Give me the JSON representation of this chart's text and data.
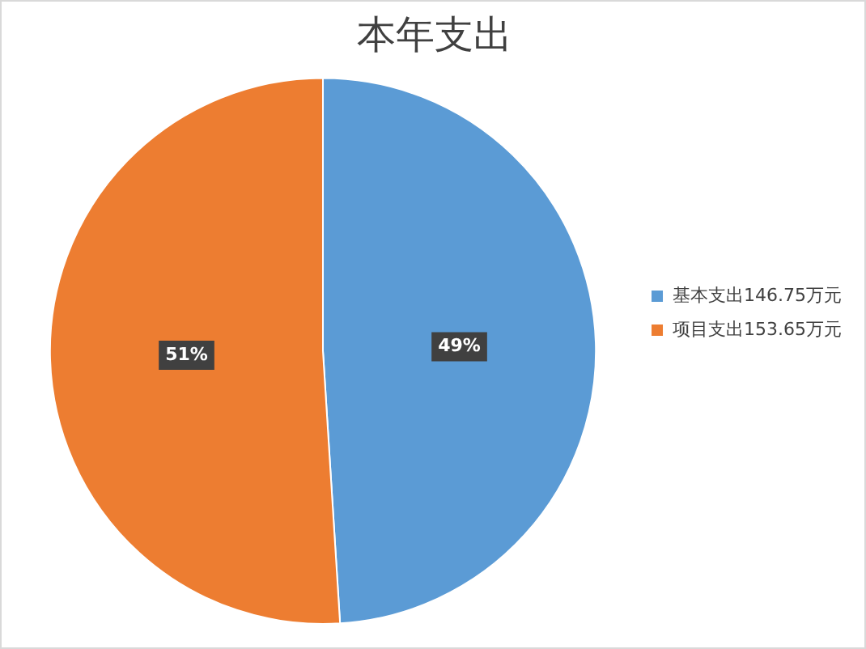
{
  "chart_data": {
    "type": "pie",
    "title": "本年支出",
    "categories": [
      "基本支出146.75万元",
      "项目支出153.65万元"
    ],
    "values": [
      49,
      51
    ],
    "colors": [
      "#5b9bd5",
      "#ed7d31"
    ],
    "value_labels": [
      "49%",
      "51%"
    ],
    "legend": "right"
  }
}
